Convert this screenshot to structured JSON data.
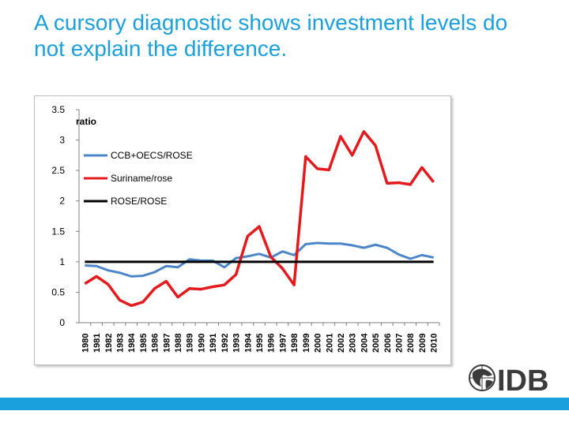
{
  "slide": {
    "title": "A cursory diagnostic shows investment levels do not explain the difference."
  },
  "logo": {
    "text": "IDB"
  },
  "colors": {
    "title": "#1aa0dc",
    "footer": "#1aa0dc"
  },
  "chart_data": {
    "type": "line",
    "ylabel": "ratio",
    "ylim": [
      0,
      3.5
    ],
    "yticks": [
      0,
      0.5,
      1,
      1.5,
      2,
      2.5,
      3,
      3.5
    ],
    "grid": false,
    "legend_position": "top-left",
    "categories": [
      "1980",
      "1981",
      "1982",
      "1983",
      "1984",
      "1985",
      "1986",
      "1987",
      "1988",
      "1989",
      "1990",
      "1991",
      "1992",
      "1993",
      "1994",
      "1995",
      "1996",
      "1997",
      "1998",
      "1999",
      "2000",
      "2001",
      "2002",
      "2003",
      "2004",
      "2005",
      "2006",
      "2007",
      "2008",
      "2009",
      "2010"
    ],
    "series": [
      {
        "name": "CCB+OECS/ROSE",
        "color": "#4a86c8",
        "values": [
          0.94,
          0.93,
          0.86,
          0.82,
          0.76,
          0.77,
          0.83,
          0.93,
          0.91,
          1.04,
          1.02,
          1.02,
          0.91,
          1.06,
          1.09,
          1.13,
          1.07,
          1.17,
          1.11,
          1.29,
          1.31,
          1.3,
          1.3,
          1.27,
          1.23,
          1.28,
          1.23,
          1.12,
          1.05,
          1.11,
          1.07
        ]
      },
      {
        "name": "Suriname/rose",
        "color": "#e41a1c",
        "values": [
          0.64,
          0.76,
          0.63,
          0.37,
          0.28,
          0.34,
          0.56,
          0.68,
          0.42,
          0.56,
          0.55,
          0.59,
          0.62,
          0.79,
          1.42,
          1.58,
          1.08,
          0.89,
          0.62,
          2.73,
          2.53,
          2.51,
          3.06,
          2.75,
          3.14,
          2.91,
          2.29,
          2.3,
          2.27,
          2.55,
          2.31
        ]
      },
      {
        "name": "ROSE/ROSE",
        "color": "#000000",
        "values": [
          1,
          1,
          1,
          1,
          1,
          1,
          1,
          1,
          1,
          1,
          1,
          1,
          1,
          1,
          1,
          1,
          1,
          1,
          1,
          1,
          1,
          1,
          1,
          1,
          1,
          1,
          1,
          1,
          1,
          1,
          1
        ]
      }
    ]
  }
}
